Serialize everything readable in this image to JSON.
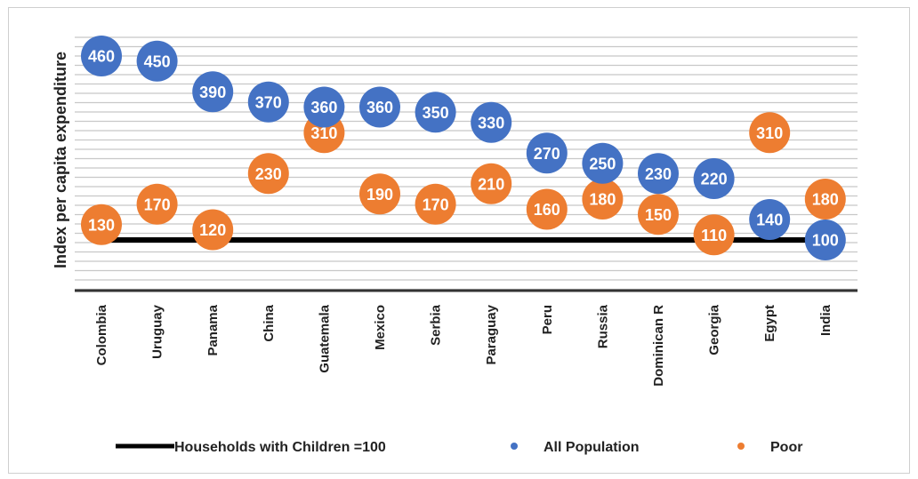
{
  "chart_data": {
    "type": "scatter",
    "ylabel": "Index  per capita expenditure",
    "categories": [
      "Colombia",
      "Uruguay",
      "Panama",
      "China",
      "Guatemala",
      "Mexico",
      "Serbia",
      "Paraguay",
      "Peru",
      "Russia",
      "Dominican R",
      "Georgia",
      "Egypt",
      "India"
    ],
    "reference_line": {
      "name": "Households with Children =100",
      "value": 100
    },
    "series": [
      {
        "name": "All Population",
        "color": "#4472c4",
        "values": [
          460,
          450,
          390,
          370,
          360,
          360,
          350,
          330,
          270,
          250,
          230,
          220,
          140,
          100
        ]
      },
      {
        "name": "Poor",
        "color": "#ed7d31",
        "values": [
          130,
          170,
          120,
          230,
          310,
          190,
          170,
          210,
          160,
          180,
          150,
          110,
          310,
          180
        ]
      }
    ],
    "ylim": [
      0,
      500
    ],
    "grid": true,
    "legend_position": "bottom"
  }
}
